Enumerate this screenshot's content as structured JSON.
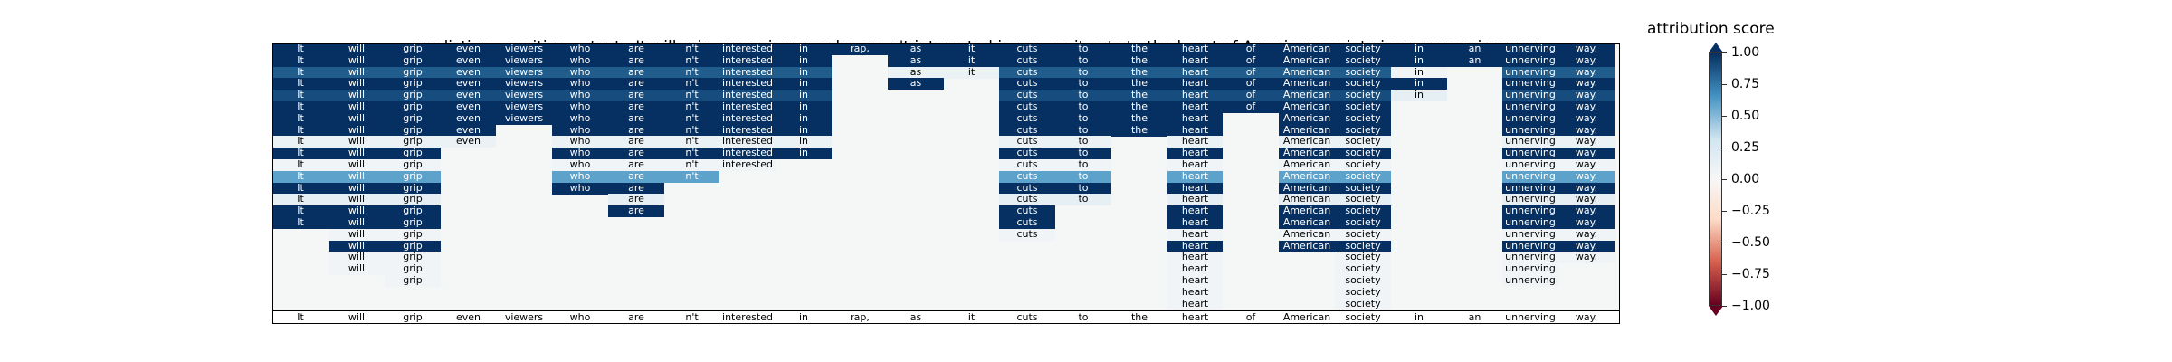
{
  "header": {
    "prediction_label": "prediction:",
    "prediction_value": "positive",
    "text_label": "text:",
    "text_value": "It will grip even viewers who are n't interested in rap, as it cuts to the heart of American society in an unnerving way."
  },
  "colorbar": {
    "title": "attribution score",
    "ticks": [
      "1.00",
      "0.75",
      "0.50",
      "0.25",
      "0.00",
      "−0.25",
      "−0.50",
      "−0.75",
      "−1.00"
    ],
    "tick_values": [
      1.0,
      0.75,
      0.5,
      0.25,
      0.0,
      -0.25,
      -0.5,
      -0.75,
      -1.0
    ],
    "range": [
      -1.0,
      1.0
    ],
    "colors": {
      "pos_strong": "#053061",
      "pos_mid": "#4393c3",
      "pos_light": "#d1e5f0",
      "neutral": "#f7f7f7",
      "neg_light": "#fddbc7",
      "neg_mid": "#d6604d",
      "neg_strong": "#67001f"
    }
  },
  "chart_data": {
    "type": "heatmap",
    "title": "prediction:  positive     text:  It will grip even viewers who are n't interested in rap, as it cuts to the heart of American society in an unnerving way.",
    "tokens": [
      "It",
      "will",
      "grip",
      "even",
      "viewers",
      "who",
      "are",
      "n't",
      "interested",
      "in",
      "rap,",
      "as",
      "it",
      "cuts",
      "to",
      "the",
      "heart",
      "of",
      "American",
      "society",
      "in",
      "an",
      "unnerving",
      "way."
    ],
    "rows": [
      [
        1,
        1,
        1,
        1,
        1,
        1,
        1,
        1,
        1,
        1,
        1,
        1,
        1,
        1,
        1,
        1,
        1,
        1,
        1,
        1,
        1,
        1,
        1,
        1
      ],
      [
        1,
        1,
        1,
        1,
        1,
        1,
        1,
        1,
        1,
        1,
        null,
        1,
        1,
        1,
        1,
        1,
        1,
        1,
        1,
        1,
        1,
        1,
        1,
        1
      ],
      [
        0.85,
        0.85,
        0.85,
        0.85,
        0.85,
        0.85,
        0.85,
        0.85,
        0.85,
        0.85,
        null,
        0.1,
        0.1,
        0.85,
        0.85,
        0.85,
        0.85,
        0.85,
        0.85,
        0.85,
        0.05,
        null,
        0.85,
        0.85
      ],
      [
        1,
        1,
        1,
        1,
        1,
        1,
        1,
        1,
        1,
        1,
        null,
        1,
        null,
        1,
        1,
        1,
        1,
        1,
        1,
        1,
        1,
        null,
        1,
        1
      ],
      [
        0.9,
        0.9,
        0.9,
        0.9,
        0.9,
        0.9,
        0.9,
        0.9,
        0.9,
        0.9,
        null,
        null,
        null,
        0.9,
        0.9,
        0.9,
        0.9,
        0.9,
        0.9,
        0.9,
        0.15,
        null,
        0.9,
        0.9
      ],
      [
        1,
        1,
        1,
        1,
        1,
        1,
        1,
        1,
        1,
        1,
        null,
        null,
        null,
        1,
        1,
        1,
        1,
        1,
        1,
        1,
        null,
        null,
        1,
        1
      ],
      [
        1,
        1,
        1,
        1,
        1,
        1,
        1,
        1,
        1,
        1,
        null,
        null,
        null,
        1,
        1,
        1,
        1,
        null,
        1,
        1,
        null,
        null,
        1,
        1
      ],
      [
        1,
        1,
        1,
        1,
        null,
        1,
        1,
        1,
        1,
        1,
        null,
        null,
        null,
        1,
        1,
        1,
        1,
        null,
        1,
        1,
        null,
        null,
        1,
        1
      ],
      [
        0.1,
        0.1,
        0.1,
        0.1,
        null,
        0.1,
        0.1,
        0.1,
        0.1,
        0.1,
        null,
        null,
        null,
        0.1,
        0.1,
        null,
        0.1,
        null,
        0.1,
        0.1,
        null,
        null,
        0.1,
        0.1
      ],
      [
        1,
        1,
        1,
        null,
        null,
        1,
        1,
        1,
        1,
        1,
        null,
        null,
        null,
        1,
        1,
        null,
        1,
        null,
        1,
        1,
        null,
        null,
        1,
        1
      ],
      [
        0.05,
        0.05,
        0.05,
        null,
        null,
        0.05,
        0.05,
        0.05,
        0.05,
        null,
        null,
        null,
        null,
        0.05,
        0.05,
        null,
        0.05,
        null,
        0.05,
        0.05,
        null,
        null,
        0.05,
        0.05
      ],
      [
        0.6,
        0.6,
        0.6,
        null,
        null,
        0.6,
        0.6,
        0.6,
        null,
        null,
        null,
        null,
        null,
        0.6,
        0.6,
        null,
        0.6,
        null,
        0.6,
        0.6,
        null,
        null,
        0.6,
        0.6
      ],
      [
        1,
        1,
        1,
        null,
        null,
        1,
        1,
        null,
        null,
        null,
        null,
        null,
        null,
        1,
        1,
        null,
        1,
        null,
        1,
        1,
        null,
        null,
        1,
        1
      ],
      [
        0.15,
        0.15,
        0.15,
        null,
        null,
        null,
        0.15,
        null,
        null,
        null,
        null,
        null,
        null,
        0.15,
        0.15,
        null,
        0.15,
        null,
        0.15,
        0.15,
        null,
        null,
        0.15,
        0.15
      ],
      [
        1,
        1,
        1,
        null,
        null,
        null,
        1,
        null,
        null,
        null,
        null,
        null,
        null,
        1,
        null,
        null,
        1,
        null,
        1,
        1,
        null,
        null,
        1,
        1
      ],
      [
        1,
        1,
        1,
        null,
        null,
        null,
        null,
        null,
        null,
        null,
        null,
        null,
        null,
        1,
        null,
        null,
        1,
        null,
        1,
        1,
        null,
        null,
        1,
        1
      ],
      [
        null,
        0.05,
        0.05,
        null,
        null,
        null,
        null,
        null,
        null,
        null,
        null,
        null,
        null,
        0.05,
        null,
        null,
        0.05,
        null,
        0.05,
        0.05,
        null,
        null,
        0.05,
        0.05
      ],
      [
        null,
        1,
        1,
        null,
        null,
        null,
        null,
        null,
        null,
        null,
        null,
        null,
        null,
        null,
        null,
        null,
        1,
        null,
        1,
        1,
        null,
        null,
        1,
        1
      ],
      [
        null,
        0.05,
        0.05,
        null,
        null,
        null,
        null,
        null,
        null,
        null,
        null,
        null,
        null,
        null,
        null,
        null,
        0.05,
        null,
        null,
        0.05,
        null,
        null,
        0.05,
        0.05
      ],
      [
        null,
        0.05,
        0.05,
        null,
        null,
        null,
        null,
        null,
        null,
        null,
        null,
        null,
        null,
        null,
        null,
        null,
        0.05,
        null,
        null,
        0.05,
        null,
        null,
        0.05,
        null
      ],
      [
        null,
        null,
        0.05,
        null,
        null,
        null,
        null,
        null,
        null,
        null,
        null,
        null,
        null,
        null,
        null,
        null,
        0.05,
        null,
        null,
        0.05,
        null,
        null,
        0.05,
        null
      ],
      [
        null,
        null,
        null,
        null,
        null,
        null,
        null,
        null,
        null,
        null,
        null,
        null,
        null,
        null,
        null,
        null,
        0.05,
        null,
        null,
        0.05,
        null,
        null,
        null,
        null
      ],
      [
        null,
        null,
        null,
        null,
        null,
        null,
        null,
        null,
        null,
        null,
        null,
        null,
        null,
        null,
        null,
        null,
        0.05,
        null,
        null,
        0.05,
        null,
        null,
        null,
        null
      ]
    ],
    "tick_labels": [
      "It",
      "will",
      "grip",
      "even",
      "viewers",
      "who",
      "are",
      "n't",
      "interested",
      "in",
      "rap,",
      "as",
      "it",
      "cuts",
      "to",
      "the",
      "heart",
      "of",
      "American",
      "society",
      "in",
      "an",
      "unnerving",
      "way."
    ],
    "colorbar_range": [
      -1.0,
      1.0
    ]
  }
}
